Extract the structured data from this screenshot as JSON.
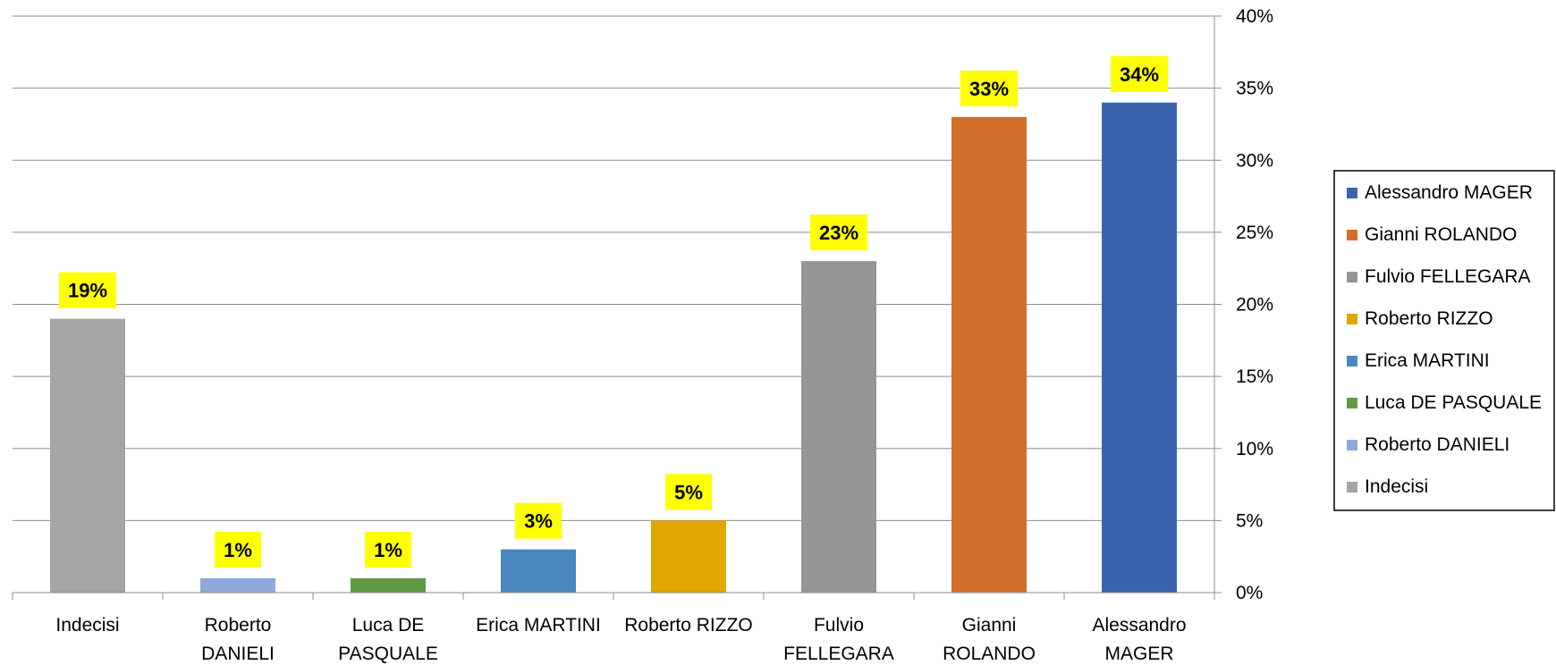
{
  "chart_data": {
    "type": "bar",
    "title": "",
    "xlabel": "",
    "ylabel": "",
    "categories": [
      [
        "Indecisi"
      ],
      [
        "Roberto",
        "DANIELI"
      ],
      [
        "Luca DE",
        "PASQUALE"
      ],
      [
        "Erica MARTINI"
      ],
      [
        "Roberto RIZZO"
      ],
      [
        "Fulvio",
        "FELLEGARA"
      ],
      [
        "Gianni",
        "ROLANDO"
      ],
      [
        "Alessandro",
        "MAGER"
      ]
    ],
    "values": [
      19,
      1,
      1,
      3,
      5,
      23,
      33,
      34
    ],
    "data_labels": [
      "19%",
      "1%",
      "1%",
      "3%",
      "5%",
      "23%",
      "33%",
      "34%"
    ],
    "colors": [
      "#A5A5A5",
      "#8FA9DB",
      "#5F9A43",
      "#4A87BF",
      "#E1A600",
      "#959595",
      "#D46E2B",
      "#3B64AE"
    ],
    "data_label_background": "#FFFF00",
    "ylim": [
      0,
      40
    ],
    "yticks": [
      0,
      5,
      10,
      15,
      20,
      25,
      30,
      35,
      40
    ],
    "ytick_labels": [
      "0%",
      "5%",
      "10%",
      "15%",
      "20%",
      "25%",
      "30%",
      "35%",
      "40%"
    ],
    "y_axis_side": "right",
    "grid": true,
    "legend_position": "right",
    "legend": [
      {
        "label": "Alessandro MAGER",
        "color": "#3B64AE"
      },
      {
        "label": "Gianni ROLANDO",
        "color": "#D46E2B"
      },
      {
        "label": "Fulvio FELLEGARA",
        "color": "#959595"
      },
      {
        "label": "Roberto RIZZO",
        "color": "#E1A600"
      },
      {
        "label": "Erica MARTINI",
        "color": "#4A87BF"
      },
      {
        "label": "Luca DE PASQUALE",
        "color": "#5F9A43"
      },
      {
        "label": "Roberto DANIELI",
        "color": "#8FA9DB"
      },
      {
        "label": "Indecisi",
        "color": "#A5A5A5"
      }
    ]
  }
}
